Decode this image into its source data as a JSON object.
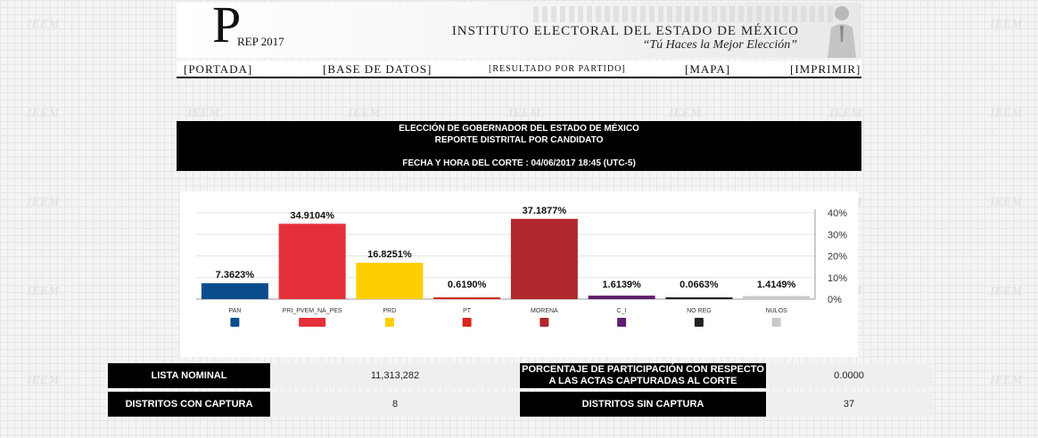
{
  "header": {
    "logo_letter": "P",
    "logo_text": "REP 2017",
    "institute_name": "INSTITUTO ELECTORAL DEL ESTADO DE MÉXICO",
    "slogan": "“Tú Haces la Mejor Elección”"
  },
  "watermark_text": "IEEM",
  "nav": {
    "portada": "[PORTADA]",
    "base_datos": "[BASE DE DATOS]",
    "resultado_partido": "[RESULTADO POR PARTIDO]",
    "mapa": "[MAPA]",
    "imprimir": "[IMPRIMIR]"
  },
  "report": {
    "line1": "ELECCIÓN DE GOBERNADOR DEL ESTADO DE MÉXICO",
    "line2": "REPORTE DISTRITAL POR CANDIDATO",
    "line3": "FECHA Y HORA DEL CORTE : 04/06/2017 18:45 (UTC-5)"
  },
  "chart_data": {
    "type": "bar",
    "categories": [
      "PAN",
      "PRI_PVEM_NA_PES",
      "PRD",
      "PT",
      "MORENA",
      "C_I",
      "NO REG",
      "NULOS"
    ],
    "values": [
      7.3623,
      34.9104,
      16.8251,
      0.619,
      37.1877,
      1.6139,
      0.0663,
      1.4149
    ],
    "value_labels": [
      "7.3623%",
      "34.9104%",
      "16.8251%",
      "0.6190%",
      "37.1877%",
      "1.6139%",
      "0.0663%",
      "1.4149%"
    ],
    "colors": [
      "#0b4d8c",
      "#e4303a",
      "#fece00",
      "#d9261c",
      "#b1282e",
      "#5e1e6e",
      "#222222",
      "#c9c9c9"
    ],
    "ylim": [
      0,
      40
    ],
    "yticks": [
      "0%",
      "10%",
      "20%",
      "30%",
      "40%"
    ],
    "ytick_values": [
      0,
      10,
      20,
      30,
      40
    ],
    "axis_side": "right",
    "grid": true
  },
  "stats": {
    "lista_nominal_label": "LISTA NOMINAL",
    "lista_nominal_value": "11,313,282",
    "participacion_label_1": "PORCENTAJE DE PARTICIPACIÓN CON RESPECTO",
    "participacion_label_2": "A LAS ACTAS CAPTURADAS AL CORTE",
    "participacion_value": "0.0000",
    "distritos_con_label": "DISTRITOS CON CAPTURA",
    "distritos_con_value": "8",
    "distritos_sin_label": "DISTRITOS SIN CAPTURA",
    "distritos_sin_value": "37"
  }
}
